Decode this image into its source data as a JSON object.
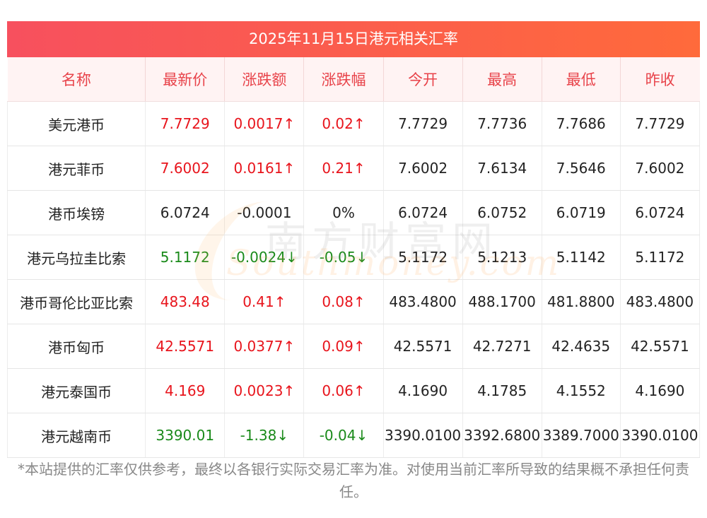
{
  "title": "2025年11月15日港元相关汇率",
  "columns": [
    "名称",
    "最新价",
    "涨跌额",
    "涨跌幅",
    "今开",
    "最高",
    "最低",
    "昨收"
  ],
  "rows": [
    {
      "name": "美元港币",
      "latest": "7.7729",
      "change": "0.0017↑",
      "pct": "0.02↑",
      "open": "7.7729",
      "high": "7.7736",
      "low": "7.7686",
      "prev": "7.7729",
      "trend": "up"
    },
    {
      "name": "港元菲币",
      "latest": "7.6002",
      "change": "0.0161↑",
      "pct": "0.21↑",
      "open": "7.6002",
      "high": "7.6134",
      "low": "7.5646",
      "prev": "7.6002",
      "trend": "up"
    },
    {
      "name": "港币埃镑",
      "latest": "6.0724",
      "change": "-0.0001",
      "pct": "0%",
      "open": "6.0724",
      "high": "6.0752",
      "low": "6.0719",
      "prev": "6.0724",
      "trend": "flat"
    },
    {
      "name": "港元乌拉圭比索",
      "latest": "5.1172",
      "change": "-0.0024↓",
      "pct": "-0.05↓",
      "open": "5.1172",
      "high": "5.1213",
      "low": "5.1142",
      "prev": "5.1172",
      "trend": "down"
    },
    {
      "name": "港币哥伦比亚比索",
      "latest": "483.48",
      "change": "0.41↑",
      "pct": "0.08↑",
      "open": "483.4800",
      "high": "488.1700",
      "low": "481.8800",
      "prev": "483.4800",
      "trend": "up"
    },
    {
      "name": "港币匈币",
      "latest": "42.5571",
      "change": "0.0377↑",
      "pct": "0.09↑",
      "open": "42.5571",
      "high": "42.7271",
      "low": "42.4635",
      "prev": "42.5571",
      "trend": "up"
    },
    {
      "name": "港元泰国币",
      "latest": "4.169",
      "change": "0.0023↑",
      "pct": "0.06↑",
      "open": "4.1690",
      "high": "4.1785",
      "low": "4.1552",
      "prev": "4.1690",
      "trend": "up"
    },
    {
      "name": "港元越南币",
      "latest": "3390.01",
      "change": "-1.38↓",
      "pct": "-0.04↓",
      "open": "3390.0100",
      "high": "3392.6800",
      "low": "3389.7000",
      "prev": "3390.0100",
      "trend": "down"
    }
  ],
  "watermark": {
    "cn": "南方财富网",
    "en": "Southmoney.com"
  },
  "footnote": "*本站提供的汇率仅供参考，最终以各银行实际交易汇率为准。对使用当前汇率所导致的结果概不承担任何责任。",
  "colors": {
    "up": "#e8141c",
    "down": "#1a8a1a",
    "header_text": "#e8434a",
    "title_gradient": [
      "#f7505e",
      "#ff6a3b"
    ]
  }
}
